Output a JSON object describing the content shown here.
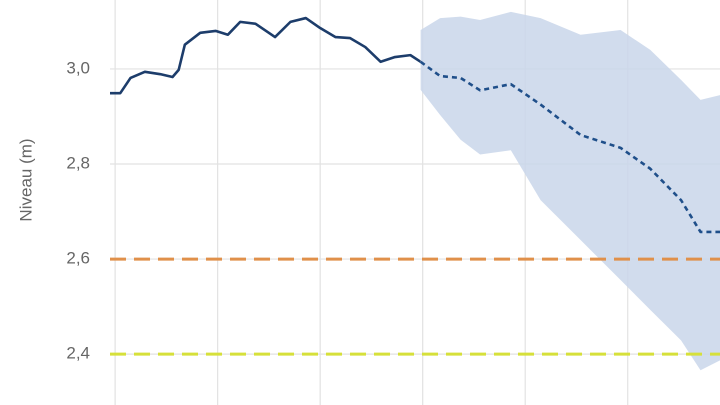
{
  "chart_data": {
    "type": "line",
    "y_label": "Niveau (m)",
    "ylim": [
      2.293,
      3.145
    ],
    "yticks": [
      {
        "value": 2.4,
        "label": "2,4"
      },
      {
        "value": 2.6,
        "label": "2,6"
      },
      {
        "value": 2.8,
        "label": "2,8"
      },
      {
        "value": 3.0,
        "label": "3,0"
      }
    ],
    "xlim": [
      -0.05,
      5.9
    ],
    "xticks": [
      0,
      1,
      2,
      3,
      4,
      5
    ],
    "grid": true,
    "thresholds": [
      {
        "value": 2.6,
        "color": "#e0904a"
      },
      {
        "value": 2.4,
        "color": "#d6e03a"
      }
    ],
    "series": [
      {
        "color": "#1d3d6b",
        "style": "solid",
        "x": [
          -0.05,
          0.05,
          0.15,
          0.29,
          0.44,
          0.56,
          0.62,
          0.68,
          0.83,
          0.98,
          1.1,
          1.22,
          1.37,
          1.56,
          1.71,
          1.86,
          2.0,
          2.15,
          2.29,
          2.44,
          2.59,
          2.73,
          2.88,
          2.98
        ],
        "values": [
          2.949,
          2.949,
          2.981,
          2.994,
          2.989,
          2.983,
          2.998,
          3.051,
          3.076,
          3.08,
          3.072,
          3.099,
          3.095,
          3.067,
          3.099,
          3.107,
          3.086,
          3.067,
          3.065,
          3.046,
          3.015,
          3.025,
          3.029,
          3.015
        ]
      },
      {
        "color": "#1f4f8a",
        "style": "dashed",
        "band_color": "#c9d6ea",
        "x": [
          2.98,
          3.17,
          3.37,
          3.56,
          3.86,
          4.15,
          4.54,
          4.93,
          5.22,
          5.52,
          5.71,
          5.9
        ],
        "values": [
          3.015,
          2.985,
          2.981,
          2.955,
          2.968,
          2.925,
          2.861,
          2.834,
          2.79,
          2.724,
          2.657,
          2.657
        ],
        "upper": [
          3.082,
          3.107,
          3.11,
          3.103,
          3.12,
          3.107,
          3.072,
          3.082,
          3.04,
          2.977,
          2.935,
          2.945
        ],
        "lower": [
          2.956,
          2.903,
          2.851,
          2.82,
          2.829,
          2.724,
          2.64,
          2.556,
          2.493,
          2.429,
          2.366,
          2.387
        ]
      }
    ]
  }
}
